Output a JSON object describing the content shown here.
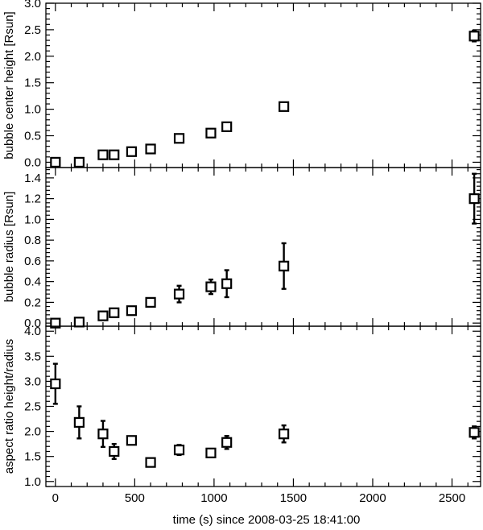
{
  "chart_data": {
    "type": "scatter",
    "x": [
      0,
      150,
      300,
      370,
      480,
      600,
      780,
      980,
      1080,
      1440,
      2640
    ],
    "xlabel": "time (s) since 2008-03-25 18:41:00",
    "xlim": [
      -60,
      2680
    ],
    "xticks": [
      0,
      500,
      1000,
      1500,
      2000,
      2500
    ],
    "xtick_labels": [
      "0",
      "500",
      "1000",
      "1500",
      "2000",
      "2500"
    ],
    "panels": [
      {
        "ylabel": "bubble center height [Rsun]",
        "ylim": [
          -0.1,
          3.0
        ],
        "yticks": [
          0.0,
          0.5,
          1.0,
          1.5,
          2.0,
          2.5,
          3.0
        ],
        "ytick_labels": [
          "0.0",
          "0.5",
          "1.0",
          "1.5",
          "2.0",
          "2.5",
          "3.0"
        ],
        "values": [
          0.0,
          0.0,
          0.14,
          0.14,
          0.2,
          0.25,
          0.45,
          0.55,
          0.67,
          1.05,
          2.38
        ],
        "errors": [
          0.02,
          0.02,
          0.03,
          0.03,
          0.03,
          0.03,
          0.04,
          0.05,
          0.05,
          0.05,
          0.1
        ]
      },
      {
        "ylabel": "bubble radius [Rsun]",
        "ylim": [
          -0.03,
          1.5
        ],
        "yticks": [
          0.0,
          0.2,
          0.4,
          0.6,
          0.8,
          1.0,
          1.2,
          1.4
        ],
        "ytick_labels": [
          "0.0",
          "0.2",
          "0.4",
          "0.6",
          "0.8",
          "1.0",
          "1.2",
          "1.4"
        ],
        "values": [
          0.0,
          0.01,
          0.07,
          0.1,
          0.12,
          0.2,
          0.28,
          0.35,
          0.38,
          0.55,
          1.2
        ],
        "errors": [
          0.01,
          0.01,
          0.03,
          0.03,
          0.03,
          0.03,
          0.08,
          0.07,
          0.13,
          0.22,
          0.24
        ]
      },
      {
        "ylabel": "aspect ratio height/radius",
        "ylim": [
          0.9,
          4.1
        ],
        "yticks": [
          1.0,
          1.5,
          2.0,
          2.5,
          3.0,
          3.5,
          4.0
        ],
        "ytick_labels": [
          "1.0",
          "1.5",
          "2.0",
          "2.5",
          "3.0",
          "3.5",
          "4.0"
        ],
        "values": [
          2.95,
          2.18,
          1.95,
          1.6,
          1.82,
          1.38,
          1.63,
          1.57,
          1.78,
          1.95,
          1.98
        ],
        "errors": [
          0.4,
          0.32,
          0.26,
          0.15,
          0.08,
          0.07,
          0.1,
          0.08,
          0.13,
          0.17,
          0.12
        ]
      }
    ]
  }
}
